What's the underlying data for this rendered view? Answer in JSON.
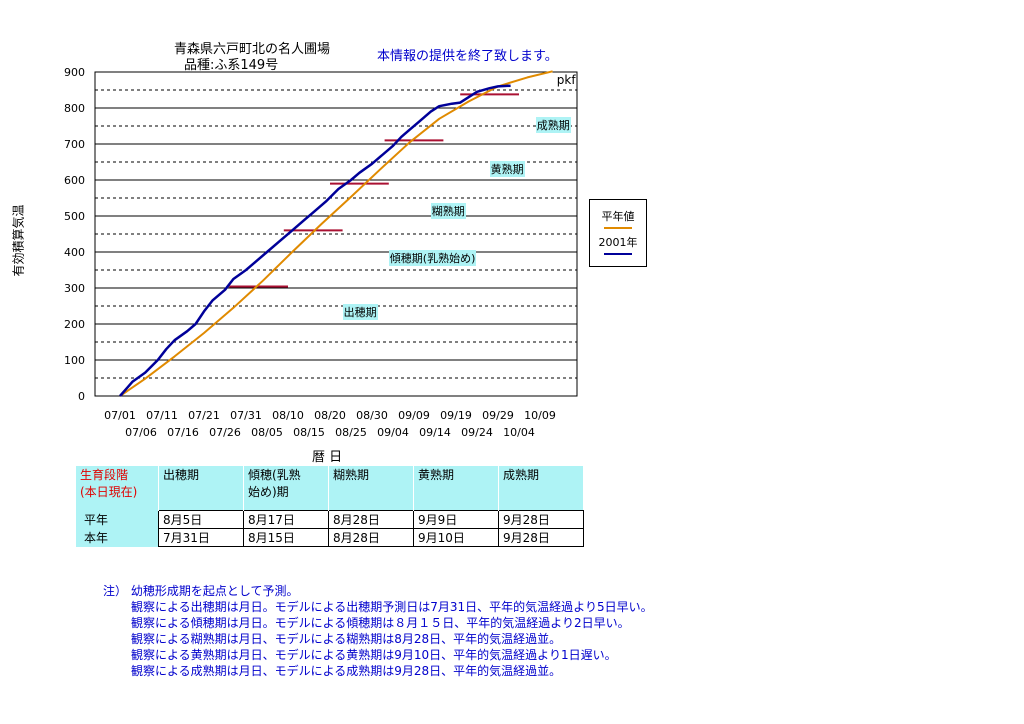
{
  "header": {
    "title_line1": "青森県六戸町北の名人圃場",
    "title_line2": "品種:ふ系149号",
    "notice": "本情報の提供を終了致します。"
  },
  "chart_data": {
    "type": "line",
    "ylabel": "有効積算気温",
    "xlabel": "暦 日",
    "ylim": [
      0,
      900
    ],
    "yticks": [
      0,
      100,
      200,
      300,
      400,
      500,
      600,
      700,
      800,
      900
    ],
    "grid": true,
    "x_start_date": "07/01",
    "x_end_day": 103,
    "xticks_top": [
      "07/01",
      "07/11",
      "07/21",
      "07/31",
      "08/10",
      "08/20",
      "08/30",
      "09/09",
      "09/19",
      "09/29",
      "10/09"
    ],
    "xticks_bottom": [
      "07/06",
      "07/16",
      "07/26",
      "08/05",
      "08/15",
      "08/25",
      "09/04",
      "09/14",
      "09/24",
      "10/04"
    ],
    "series": [
      {
        "name": "平年値",
        "color": "#e08a00",
        "x_days": [
          0,
          6,
          13,
          20,
          27,
          34,
          41,
          48,
          55,
          62,
          69,
          76,
          83,
          90,
          97,
          103
        ],
        "values": [
          0,
          48,
          110,
          175,
          245,
          320,
          400,
          478,
          553,
          630,
          705,
          770,
          818,
          860,
          885,
          902
        ]
      },
      {
        "name": "2001年",
        "color": "#000099",
        "x_days": [
          0,
          3,
          6,
          9,
          11,
          13,
          16,
          18,
          20,
          22,
          25,
          27,
          30,
          32,
          35,
          38,
          41,
          44,
          46,
          49,
          52,
          55,
          57,
          60,
          62,
          65,
          67,
          69,
          71,
          74,
          76,
          79,
          81,
          83,
          85,
          88,
          90,
          93
        ],
        "values": [
          0,
          40,
          65,
          100,
          130,
          155,
          180,
          200,
          235,
          265,
          295,
          325,
          350,
          370,
          400,
          430,
          460,
          490,
          510,
          540,
          575,
          600,
          620,
          645,
          665,
          695,
          720,
          740,
          760,
          790,
          805,
          812,
          815,
          830,
          845,
          855,
          860,
          862
        ]
      }
    ],
    "stage_marks": [
      {
        "day_start": 26,
        "day_end": 40,
        "value": 304
      },
      {
        "day_start": 39,
        "day_end": 53,
        "value": 460
      },
      {
        "day_start": 50,
        "day_end": 64,
        "value": 590
      },
      {
        "day_start": 63,
        "day_end": 77,
        "value": 710
      },
      {
        "day_start": 81,
        "day_end": 95,
        "value": 838
      }
    ],
    "annotations": [
      {
        "text": "pkf",
        "day": 104,
        "value": 878
      },
      {
        "text": "成熟期",
        "day": 99,
        "value": 755
      },
      {
        "text": "黄熟期",
        "day": 88,
        "value": 634
      },
      {
        "text": "糊熟期",
        "day": 74,
        "value": 518
      },
      {
        "text": "傾穂期(乳熟始め)",
        "day": 64,
        "value": 385
      },
      {
        "text": "出穂期",
        "day": 53,
        "value": 236
      }
    ]
  },
  "legend": {
    "items": [
      {
        "label": "平年値",
        "color": "#e08a00"
      },
      {
        "label": "2001年",
        "color": "#000099"
      }
    ]
  },
  "table": {
    "header_label": "生育段階\n(本日現在)",
    "headers": [
      "出穂期",
      "傾穂(乳熟\n始め)期",
      "糊熟期",
      "黄熟期",
      "成熟期"
    ],
    "rows": [
      {
        "label": "平年",
        "cells": [
          "8月5日",
          "8月17日",
          "8月28日",
          "9月9日",
          "9月28日"
        ]
      },
      {
        "label": "本年",
        "cells": [
          "7月31日",
          "8月15日",
          "8月28日",
          "9月10日",
          "9月28日"
        ]
      }
    ]
  },
  "notes": {
    "lines": [
      "注） 幼穂形成期を起点として予測。",
      "観察による出穂期は月日。モデルによる出穂期予測日は7月31日、平年的気温経過より5日早い。",
      "観察による傾穂期は月日。モデルによる傾穂期は８月１５日、平年的気温経過より2日早い。",
      "観察による糊熟期は月日、モデルによる糊熟期は8月28日、平年的気温経過並。",
      "観察による黄熟期は月日、モデルによる黄熟期は9月10日、平年的気温経過より1日遅い。",
      "観察による成熟期は月日、モデルによる成熟期は9月28日、平年的気温経過並。"
    ]
  }
}
